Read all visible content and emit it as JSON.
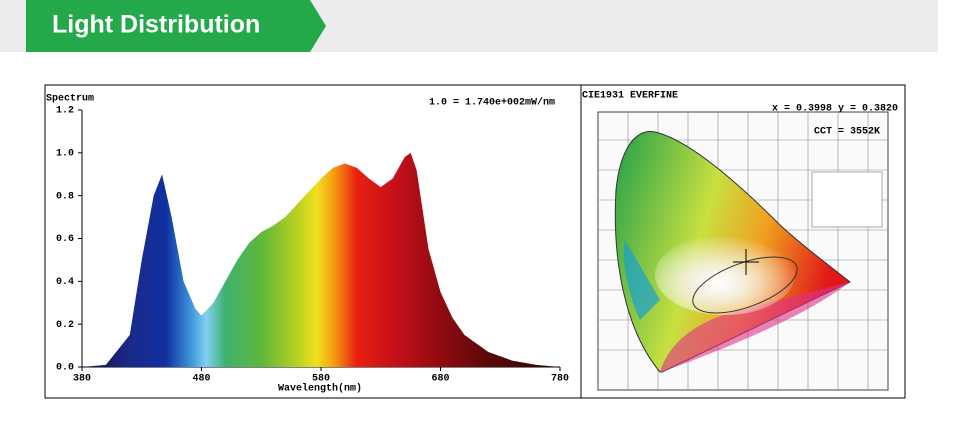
{
  "header": {
    "title": "Light Distribution"
  },
  "chart_data": {
    "type": "area",
    "title": "Spectrum",
    "subtitle": "1.0 = 1.740e+002mW/nm",
    "x_label": "Wavelength(nm)",
    "x": [
      380,
      400,
      420,
      430,
      440,
      447,
      455,
      465,
      475,
      480,
      490,
      500,
      510,
      520,
      530,
      540,
      550,
      560,
      570,
      580,
      590,
      600,
      610,
      620,
      630,
      640,
      650,
      655,
      660,
      670,
      680,
      690,
      700,
      720,
      740,
      760,
      780
    ],
    "values": [
      0,
      0.01,
      0.15,
      0.5,
      0.8,
      0.9,
      0.7,
      0.4,
      0.27,
      0.24,
      0.3,
      0.4,
      0.5,
      0.58,
      0.63,
      0.66,
      0.7,
      0.76,
      0.82,
      0.88,
      0.93,
      0.95,
      0.93,
      0.88,
      0.84,
      0.88,
      0.98,
      1.0,
      0.92,
      0.55,
      0.35,
      0.23,
      0.15,
      0.07,
      0.03,
      0.01,
      0
    ],
    "xlim": [
      380,
      780
    ],
    "xticks": [
      380,
      480,
      580,
      680,
      780
    ],
    "ylim": [
      0,
      1.2
    ],
    "yticks": [
      {
        "value": 0,
        "label": "0.0"
      },
      {
        "value": 0.2,
        "label": "0.2"
      },
      {
        "value": 0.4,
        "label": "0.4"
      },
      {
        "value": 0.6,
        "label": "0.6"
      },
      {
        "value": 0.8,
        "label": "0.8"
      },
      {
        "value": 1,
        "label": "1.0"
      },
      {
        "value": 1.2,
        "label": "1.2"
      }
    ]
  },
  "cie": {
    "title": "CIE1931  EVERFINE",
    "coords": "x = 0.3998 y = 0.3820",
    "cct": "CCT = 3552K"
  }
}
